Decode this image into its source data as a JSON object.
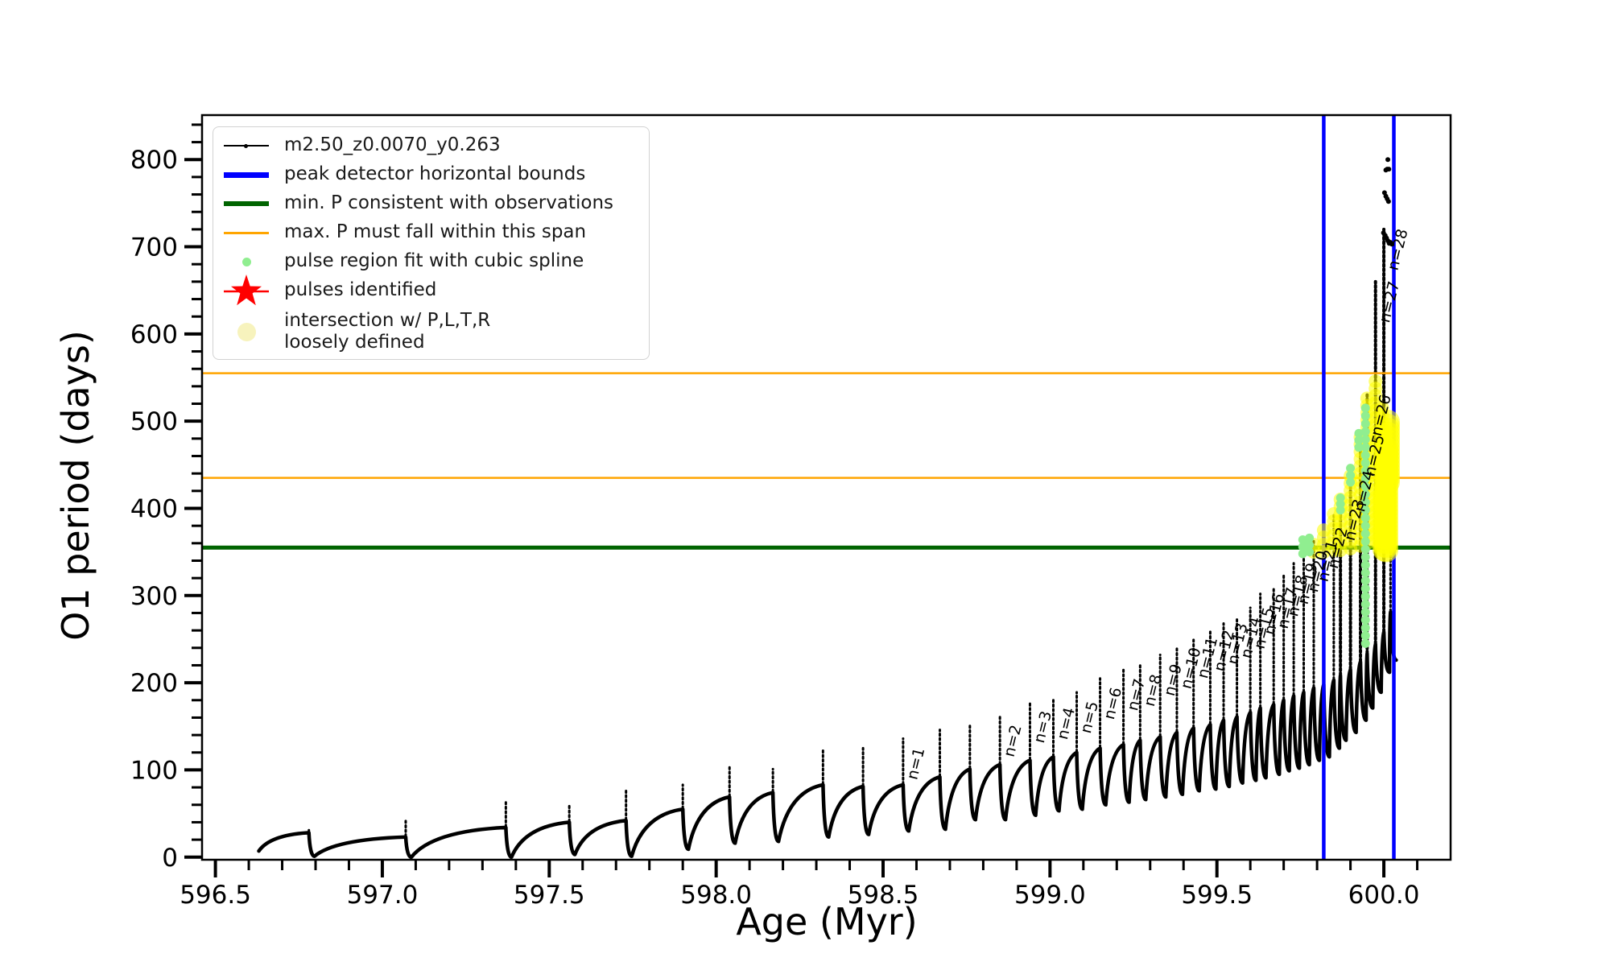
{
  "axes": {
    "xlabel": "Age (Myr)",
    "ylabel": "O1 period (days)"
  },
  "legend": {
    "items": [
      {
        "label": "m2.50_z0.0070_y0.263",
        "marker": "black-line-dot"
      },
      {
        "label": "peak detector horizontal bounds",
        "marker": "blue-line"
      },
      {
        "label": "min. P consistent with observations",
        "marker": "darkgreen-line"
      },
      {
        "label": "max. P must fall within this span",
        "marker": "orange-line"
      },
      {
        "label": "pulse region fit with cubic spline",
        "marker": "lightgreen-dot"
      },
      {
        "label": "pulses identified",
        "marker": "red-star"
      },
      {
        "label": "intersection w/ P,L,T,R",
        "label2": "loosely defined",
        "marker": "paleyellow-dot"
      }
    ]
  },
  "chart_data": {
    "type": "line",
    "series_label": "m2.50_z0.0070_y0.263",
    "title": "",
    "xlabel": "Age (Myr)",
    "ylabel": "O1 period (days)",
    "xlim": [
      596.46,
      600.2
    ],
    "ylim": [
      -3,
      851
    ],
    "x_major_ticks": [
      596.5,
      597.0,
      597.5,
      598.0,
      598.5,
      599.0,
      599.5,
      600.0
    ],
    "x_minor_step": 0.1,
    "y_major_ticks": [
      0,
      100,
      200,
      300,
      400,
      500,
      600,
      700,
      800
    ],
    "y_minor_step": 20,
    "grid": false,
    "legend_position": "upper left",
    "curve_color": "#000000",
    "start_point": {
      "age": 596.63,
      "period": 7
    },
    "pulses_format": [
      "age_myr",
      "crest_days",
      "spike_tip_days",
      "dip_after_days",
      "n_label_or_0"
    ],
    "pulses": [
      [
        596.78,
        28,
        33,
        1,
        0
      ],
      [
        597.07,
        23,
        43,
        0,
        0
      ],
      [
        597.37,
        34,
        63,
        0,
        0
      ],
      [
        597.56,
        40,
        59,
        3,
        0
      ],
      [
        597.73,
        42,
        77,
        1,
        0
      ],
      [
        597.9,
        55,
        83,
        9,
        0
      ],
      [
        598.04,
        69,
        106,
        16,
        0
      ],
      [
        598.17,
        74,
        101,
        18,
        0
      ],
      [
        598.32,
        83,
        125,
        23,
        0
      ],
      [
        598.44,
        81,
        125,
        26,
        0
      ],
      [
        598.56,
        83,
        136,
        30,
        1
      ],
      [
        598.67,
        92,
        146,
        32,
        0
      ],
      [
        598.76,
        101,
        153,
        43,
        0
      ],
      [
        598.85,
        106,
        162,
        43,
        2
      ],
      [
        598.94,
        111,
        178,
        48,
        3
      ],
      [
        599.01,
        115,
        182,
        53,
        4
      ],
      [
        599.08,
        120,
        189,
        55,
        5
      ],
      [
        599.15,
        125,
        205,
        60,
        6
      ],
      [
        599.22,
        129,
        215,
        63,
        7
      ],
      [
        599.27,
        134,
        220,
        66,
        8
      ],
      [
        599.33,
        138,
        232,
        69,
        9
      ],
      [
        599.38,
        143,
        240,
        72,
        10
      ],
      [
        599.43,
        148,
        252,
        76,
        11
      ],
      [
        599.48,
        152,
        260,
        78,
        12
      ],
      [
        599.52,
        157,
        268,
        81,
        13
      ],
      [
        599.56,
        161,
        275,
        85,
        14
      ],
      [
        599.6,
        166,
        286,
        88,
        15
      ],
      [
        599.63,
        171,
        302,
        91,
        16
      ],
      [
        599.67,
        175,
        309,
        95,
        17
      ],
      [
        599.7,
        180,
        323,
        99,
        18
      ],
      [
        599.73,
        185,
        337,
        102,
        19
      ],
      [
        599.76,
        189,
        351,
        106,
        20
      ],
      [
        599.79,
        194,
        363,
        111,
        21
      ],
      [
        599.82,
        198,
        378,
        115,
        22
      ],
      [
        599.85,
        203,
        395,
        125,
        0
      ],
      [
        599.87,
        208,
        410,
        134,
        23
      ],
      [
        599.9,
        215,
        443,
        143,
        24
      ],
      [
        599.93,
        224,
        484,
        157,
        25
      ],
      [
        599.95,
        233,
        530,
        171,
        26
      ],
      [
        599.975,
        244,
        660,
        189,
        27
      ],
      [
        600.0,
        258,
        720,
        212,
        28
      ],
      [
        600.02,
        281,
        430,
        226,
        0
      ]
    ],
    "hlines": [
      {
        "y": 355,
        "color": "#006400",
        "width": 5,
        "name": "min-p-consistent-line"
      },
      {
        "y": 435,
        "color": "#ffa500",
        "width": 2.5,
        "name": "max-p-span-lower-line"
      },
      {
        "y": 555,
        "color": "#ffa500",
        "width": 2.5,
        "name": "max-p-span-upper-line"
      }
    ],
    "vlines": [
      {
        "x": 599.82,
        "color": "#0000ff",
        "width": 4.5,
        "name": "peak-detector-left-bound"
      },
      {
        "x": 600.03,
        "color": "#0000ff",
        "width": 4.5,
        "name": "peak-detector-right-bound"
      }
    ],
    "spline_fit_dots": {
      "color": "#90ee90",
      "columns": [
        {
          "age": 599.945,
          "from": 245,
          "to": 520,
          "step": 9
        },
        {
          "age": 599.757,
          "from": 348,
          "to": 364,
          "step": 8
        },
        {
          "age": 599.777,
          "from": 350,
          "to": 366,
          "step": 8
        },
        {
          "age": 599.87,
          "from": 398,
          "to": 412,
          "step": 7
        },
        {
          "age": 599.9,
          "from": 430,
          "to": 446,
          "step": 8
        },
        {
          "age": 599.925,
          "from": 470,
          "to": 487,
          "step": 8
        }
      ]
    },
    "intersection_markers": {
      "color": "rgba(255,255,0,0.55)",
      "chains": [
        {
          "age": 599.79,
          "from": 350,
          "to": 365
        },
        {
          "age": 599.82,
          "from": 350,
          "to": 379
        },
        {
          "age": 599.85,
          "from": 352,
          "to": 396
        },
        {
          "age": 599.87,
          "from": 352,
          "to": 411
        },
        {
          "age": 599.9,
          "from": 354,
          "to": 444
        },
        {
          "age": 599.93,
          "from": 357,
          "to": 485
        },
        {
          "age": 599.95,
          "from": 360,
          "to": 531
        },
        {
          "age": 599.975,
          "from": 363,
          "to": 546
        },
        {
          "age": 599.995,
          "from": 366,
          "to": 521
        }
      ],
      "blobs": [
        {
          "age": 600.002,
          "from": 353,
          "to": 422
        },
        {
          "age": 600.007,
          "from": 352,
          "to": 468
        },
        {
          "age": 600.012,
          "from": 430,
          "to": 502
        }
      ]
    },
    "sparse_dots": [
      [
        600.012,
        800
      ],
      [
        600.006,
        788
      ],
      [
        600.01,
        789
      ],
      [
        600.015,
        789
      ],
      [
        600.002,
        762
      ],
      [
        600.006,
        758
      ],
      [
        600.01,
        755
      ],
      [
        600.014,
        752
      ],
      [
        599.999,
        716
      ],
      [
        600.004,
        713
      ],
      [
        600.008,
        710
      ],
      [
        600.012,
        707
      ],
      [
        600.016,
        704
      ],
      [
        600.02,
        705
      ],
      [
        600.024,
        703
      ]
    ]
  }
}
